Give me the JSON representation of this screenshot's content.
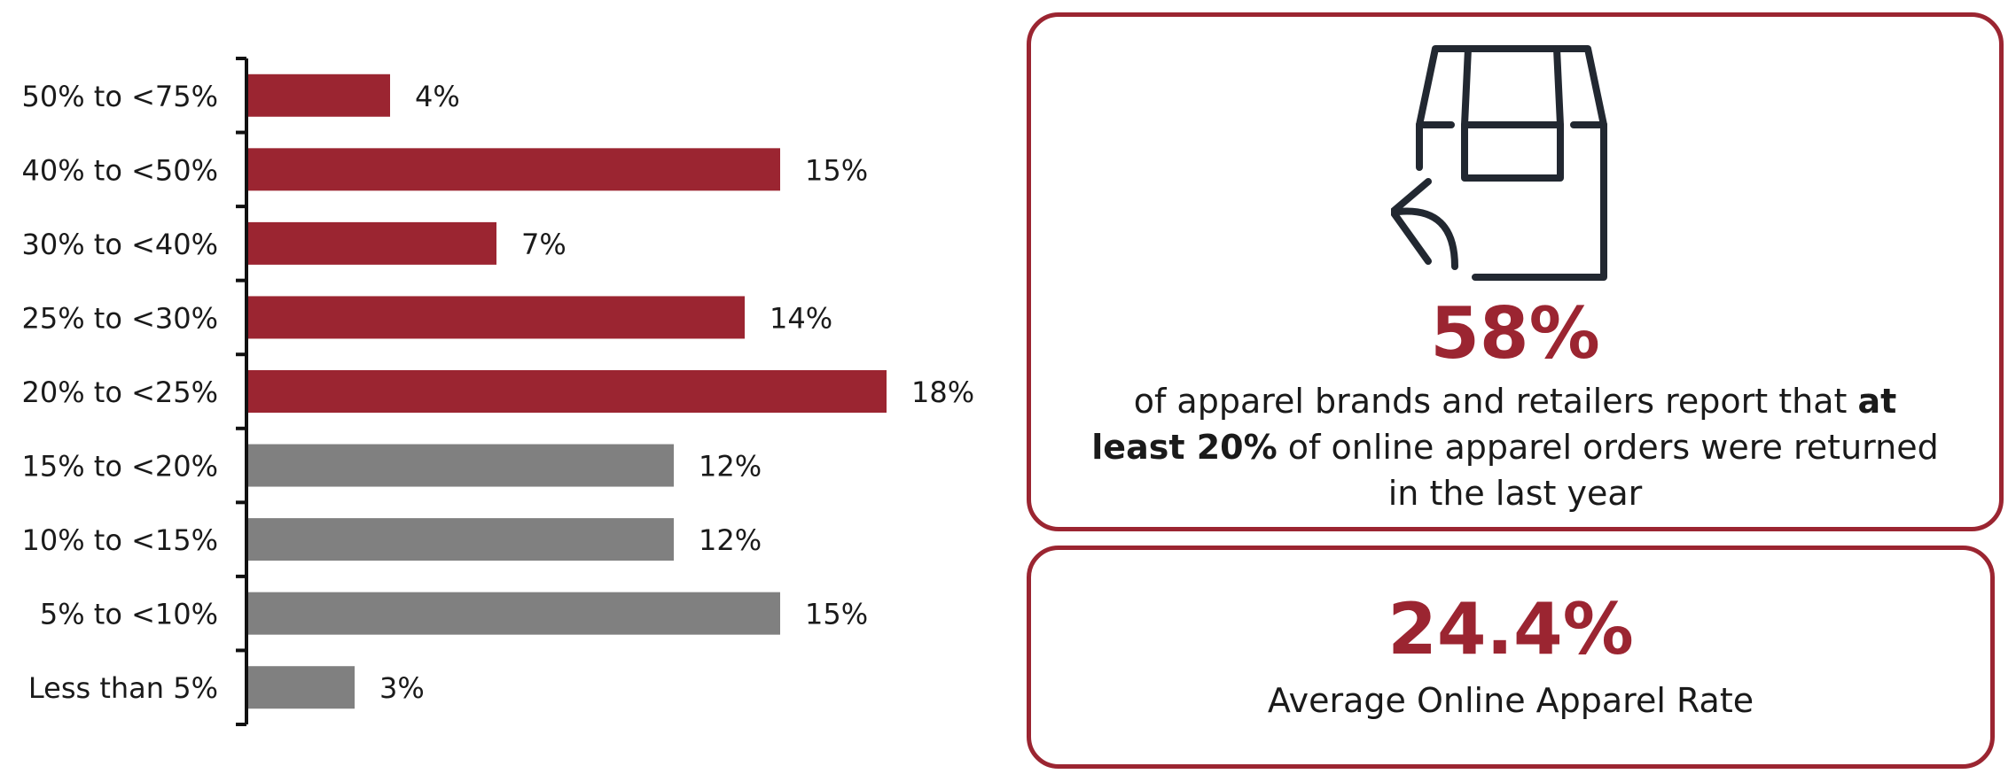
{
  "chart_data": {
    "type": "bar",
    "orientation": "horizontal",
    "categories": [
      "50% to <75%",
      "40% to <50%",
      "30% to <40%",
      "25% to <30%",
      "20% to <25%",
      "15% to <20%",
      "10% to <15%",
      "5% to <10%",
      "Less than 5%"
    ],
    "values": [
      4,
      15,
      7,
      14,
      18,
      12,
      12,
      15,
      3
    ],
    "value_labels": [
      "4%",
      "15%",
      "7%",
      "14%",
      "18%",
      "12%",
      "12%",
      "15%",
      "3%"
    ],
    "bar_colors": [
      "#9b2531",
      "#9b2531",
      "#9b2531",
      "#9b2531",
      "#9b2531",
      "#808080",
      "#808080",
      "#808080",
      "#808080"
    ],
    "xlim": [
      0,
      18
    ],
    "grid": false,
    "legend": "none"
  },
  "colors": {
    "accent": "#9b2531",
    "gray": "#808080",
    "icon": "#222831"
  },
  "card1": {
    "icon": "package-return-icon",
    "stat": "58%",
    "text_before": "of apparel brands and retailers report that ",
    "text_bold": "at least 20%",
    "text_after": " of online apparel orders were returned in the last year"
  },
  "card2": {
    "stat": "24.4%",
    "label": "Average Online Apparel Rate"
  }
}
